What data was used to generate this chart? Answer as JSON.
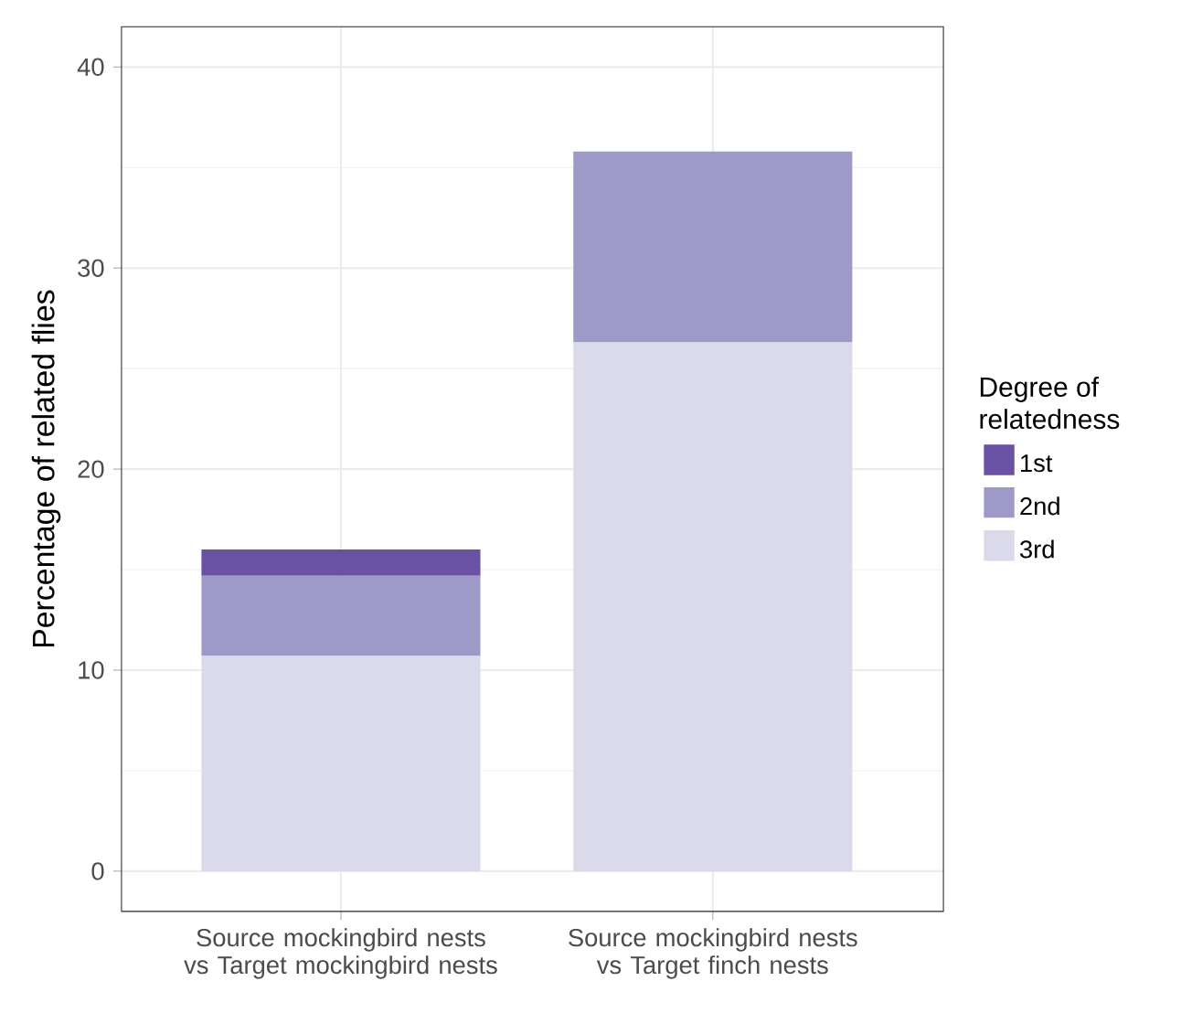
{
  "chart_data": {
    "type": "bar",
    "stacked": true,
    "ylabel": "Percentage of related flies",
    "legend_title": "Degree of relatedness",
    "categories": [
      "Source mockingbird nests vs Target mockingbird nests",
      "Source mockingbird nests vs Target finch nests"
    ],
    "series": [
      {
        "name": "3rd",
        "color": "#dadaeb",
        "values": [
          10.7,
          26.3
        ]
      },
      {
        "name": "2nd",
        "color": "#9e9ac8",
        "values": [
          4.0,
          9.5
        ]
      },
      {
        "name": "1st",
        "color": "#6a51a3",
        "values": [
          1.3,
          0
        ]
      }
    ],
    "ylim": [
      -2,
      42
    ],
    "yticks": [
      0,
      10,
      20,
      30,
      40
    ],
    "grid": true,
    "legend": "right"
  }
}
